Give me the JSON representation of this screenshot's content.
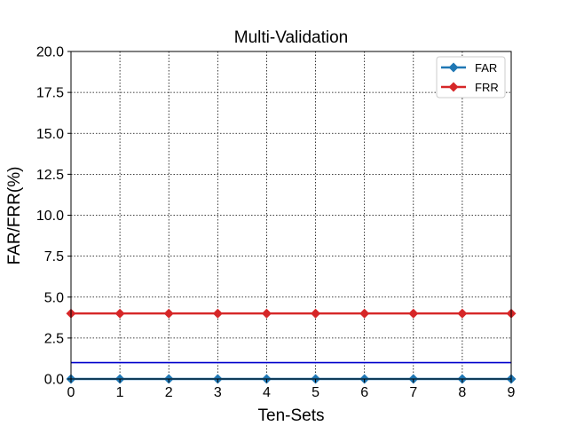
{
  "chart_data": {
    "type": "line",
    "title": "Multi-Validation",
    "xlabel": "Ten-Sets",
    "ylabel": "FAR/FRR(%)",
    "x": [
      0,
      1,
      2,
      3,
      4,
      5,
      6,
      7,
      8,
      9
    ],
    "xlim": [
      0,
      9
    ],
    "ylim": [
      0,
      20
    ],
    "xticks": [
      "0",
      "1",
      "2",
      "3",
      "4",
      "5",
      "6",
      "7",
      "8",
      "9"
    ],
    "yticks": [
      "0.0",
      "2.5",
      "5.0",
      "7.5",
      "10.0",
      "12.5",
      "15.0",
      "17.5",
      "20.0"
    ],
    "grid": true,
    "legend_position": "top-right",
    "series": [
      {
        "name": "FAR",
        "values": [
          0,
          0,
          0,
          0,
          0,
          0,
          0,
          0,
          0,
          0
        ],
        "color": "#1f77b4",
        "marker": "diamond"
      },
      {
        "name": "FRR",
        "values": [
          4,
          4,
          4,
          4,
          4,
          4,
          4,
          4,
          4,
          4
        ],
        "color": "#d62728",
        "marker": "diamond"
      }
    ],
    "reference_line": {
      "y": 1,
      "color": "#0000cc"
    }
  }
}
